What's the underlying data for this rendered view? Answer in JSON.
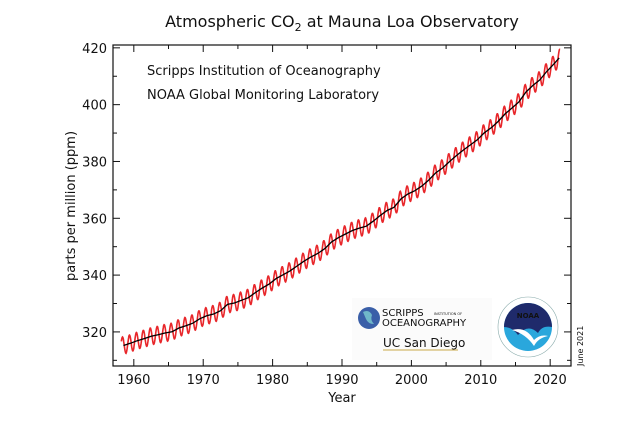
{
  "chart_data": {
    "type": "line",
    "title": "Atmospheric CO",
    "title_subscript": "2",
    "title_suffix": " at Mauna Loa Observatory",
    "xlabel": "Year",
    "ylabel": "parts per million (ppm)",
    "xlim": [
      1957,
      2023
    ],
    "ylim": [
      308,
      421
    ],
    "x_ticks": [
      1960,
      1970,
      1980,
      1990,
      2000,
      2010,
      2020
    ],
    "y_ticks": [
      320,
      340,
      360,
      380,
      400,
      420
    ],
    "grid": false,
    "annotations": [
      "Scripps Institution of Oceanography",
      "NOAA Global Monitoring Laboratory"
    ],
    "date_note": "June 2021",
    "series": [
      {
        "style": "monthly",
        "color": "#e8262a",
        "seasonal_amplitude_ppm": 3
      },
      {
        "style": "trend",
        "color": "#000000"
      }
    ],
    "x": [
      1958.5,
      1959.5,
      1960.5,
      1961.5,
      1962.5,
      1963.5,
      1964.5,
      1965.5,
      1966.5,
      1967.5,
      1968.5,
      1969.5,
      1970.5,
      1971.5,
      1972.5,
      1973.5,
      1974.5,
      1975.5,
      1976.5,
      1977.5,
      1978.5,
      1979.5,
      1980.5,
      1981.5,
      1982.5,
      1983.5,
      1984.5,
      1985.5,
      1986.5,
      1987.5,
      1988.5,
      1989.5,
      1990.5,
      1991.5,
      1992.5,
      1993.5,
      1994.5,
      1995.5,
      1996.5,
      1997.5,
      1998.5,
      1999.5,
      2000.5,
      2001.5,
      2002.5,
      2003.5,
      2004.5,
      2005.5,
      2006.5,
      2007.5,
      2008.5,
      2009.5,
      2010.5,
      2011.5,
      2012.5,
      2013.5,
      2014.5,
      2015.5,
      2016.5,
      2017.5,
      2018.5,
      2019.5,
      2020.5,
      2021.3
    ],
    "y": [
      315.2,
      315.98,
      316.91,
      317.64,
      318.45,
      318.99,
      319.62,
      320.04,
      321.37,
      322.18,
      323.05,
      324.62,
      325.68,
      326.32,
      327.46,
      329.68,
      330.19,
      331.12,
      332.03,
      333.84,
      335.41,
      336.84,
      338.76,
      340.12,
      341.48,
      343.15,
      344.85,
      346.35,
      347.61,
      349.31,
      351.69,
      353.2,
      354.45,
      355.7,
      356.54,
      357.21,
      358.96,
      360.97,
      362.74,
      363.88,
      366.84,
      368.54,
      369.71,
      371.32,
      373.45,
      375.98,
      377.7,
      379.98,
      382.09,
      384.02,
      385.83,
      387.64,
      390.1,
      391.85,
      394.06,
      396.74,
      398.81,
      401.01,
      404.41,
      406.76,
      408.72,
      411.66,
      414.24,
      416.45
    ]
  },
  "logos": {
    "scripps_line1": "SCRIPPS",
    "scripps_small": "INSTITUTION OF",
    "scripps_line2": "OCEANOGRAPHY",
    "ucsd": "UC San Diego",
    "noaa": "NOAA"
  }
}
